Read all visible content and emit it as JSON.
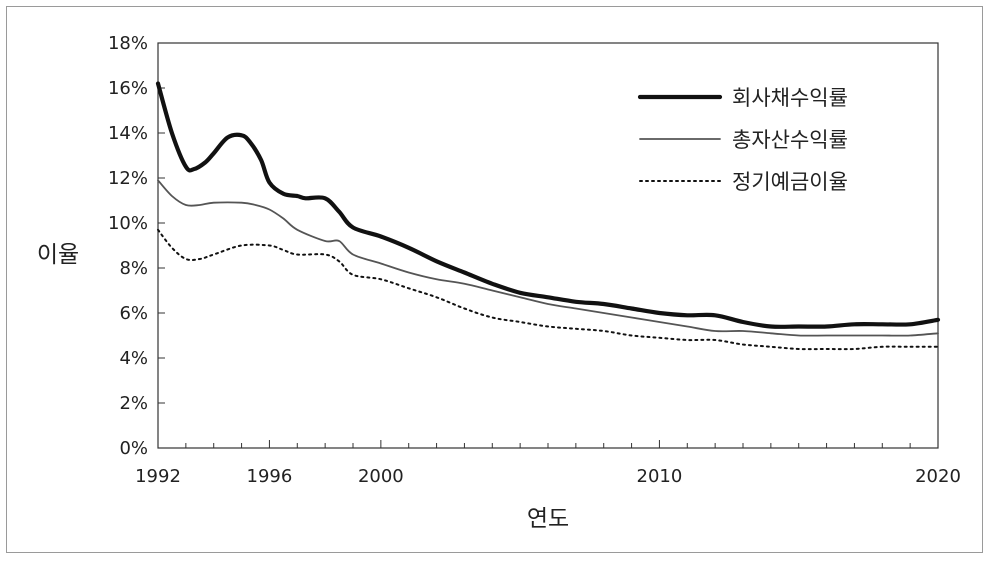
{
  "chart_data": {
    "type": "line",
    "title": "",
    "xlabel": "연도",
    "ylabel": "이율",
    "xlim": [
      1992,
      2020
    ],
    "ylim": [
      0,
      18
    ],
    "y_ticks": [
      "0%",
      "2%",
      "4%",
      "6%",
      "8%",
      "10%",
      "12%",
      "14%",
      "16%",
      "18%"
    ],
    "x_ticks": [
      "1992",
      "1996",
      "2000",
      "2010",
      "2020"
    ],
    "x_tick_values": [
      1992,
      1996,
      2000,
      2010,
      2020
    ],
    "grid": false,
    "legend_position": "top-right",
    "series": [
      {
        "name": "회사채수익률",
        "style": "thick-solid",
        "color": "#111111",
        "x": [
          1992,
          1992.5,
          1993,
          1993.3,
          1993.7,
          1994,
          1994.5,
          1995,
          1995.3,
          1995.7,
          1996,
          1996.5,
          1997,
          1997.3,
          1998,
          1998.5,
          1999,
          2000,
          2001,
          2002,
          2003,
          2004,
          2005,
          2006,
          2007,
          2008,
          2009,
          2010,
          2011,
          2012,
          2013,
          2014,
          2015,
          2016,
          2017,
          2018,
          2019,
          2020
        ],
        "y": [
          16.2,
          14.0,
          12.5,
          12.4,
          12.7,
          13.1,
          13.8,
          13.9,
          13.6,
          12.8,
          11.8,
          11.3,
          11.2,
          11.1,
          11.1,
          10.5,
          9.8,
          9.4,
          8.9,
          8.3,
          7.8,
          7.3,
          6.9,
          6.7,
          6.5,
          6.4,
          6.2,
          6.0,
          5.9,
          5.9,
          5.6,
          5.4,
          5.4,
          5.4,
          5.5,
          5.5,
          5.5,
          5.7
        ]
      },
      {
        "name": "총자산수익률",
        "style": "thin-solid",
        "color": "#555555",
        "x": [
          1992,
          1992.5,
          1993,
          1993.5,
          1994,
          1995,
          1995.5,
          1996,
          1996.5,
          1997,
          1998,
          1998.5,
          1999,
          2000,
          2001,
          2002,
          2003,
          2004,
          2005,
          2006,
          2007,
          2008,
          2009,
          2010,
          2011,
          2012,
          2013,
          2014,
          2015,
          2016,
          2017,
          2018,
          2019,
          2020
        ],
        "y": [
          11.9,
          11.2,
          10.8,
          10.8,
          10.9,
          10.9,
          10.8,
          10.6,
          10.2,
          9.7,
          9.2,
          9.2,
          8.6,
          8.2,
          7.8,
          7.5,
          7.3,
          7.0,
          6.7,
          6.4,
          6.2,
          6.0,
          5.8,
          5.6,
          5.4,
          5.2,
          5.2,
          5.1,
          5.0,
          5.0,
          5.0,
          5.0,
          5.0,
          5.1
        ]
      },
      {
        "name": "정기예금이율",
        "style": "dotted",
        "color": "#111111",
        "x": [
          1992,
          1992.5,
          1993,
          1993.5,
          1994,
          1995,
          1996,
          1996.5,
          1997,
          1998,
          1998.5,
          1999,
          2000,
          2001,
          2002,
          2003,
          2004,
          2005,
          2006,
          2007,
          2008,
          2009,
          2010,
          2011,
          2012,
          2013,
          2014,
          2015,
          2016,
          2017,
          2018,
          2019,
          2020
        ],
        "y": [
          9.7,
          8.9,
          8.4,
          8.4,
          8.6,
          9.0,
          9.0,
          8.8,
          8.6,
          8.6,
          8.3,
          7.7,
          7.5,
          7.1,
          6.7,
          6.2,
          5.8,
          5.6,
          5.4,
          5.3,
          5.2,
          5.0,
          4.9,
          4.8,
          4.8,
          4.6,
          4.5,
          4.4,
          4.4,
          4.4,
          4.5,
          4.5,
          4.5
        ]
      }
    ]
  }
}
